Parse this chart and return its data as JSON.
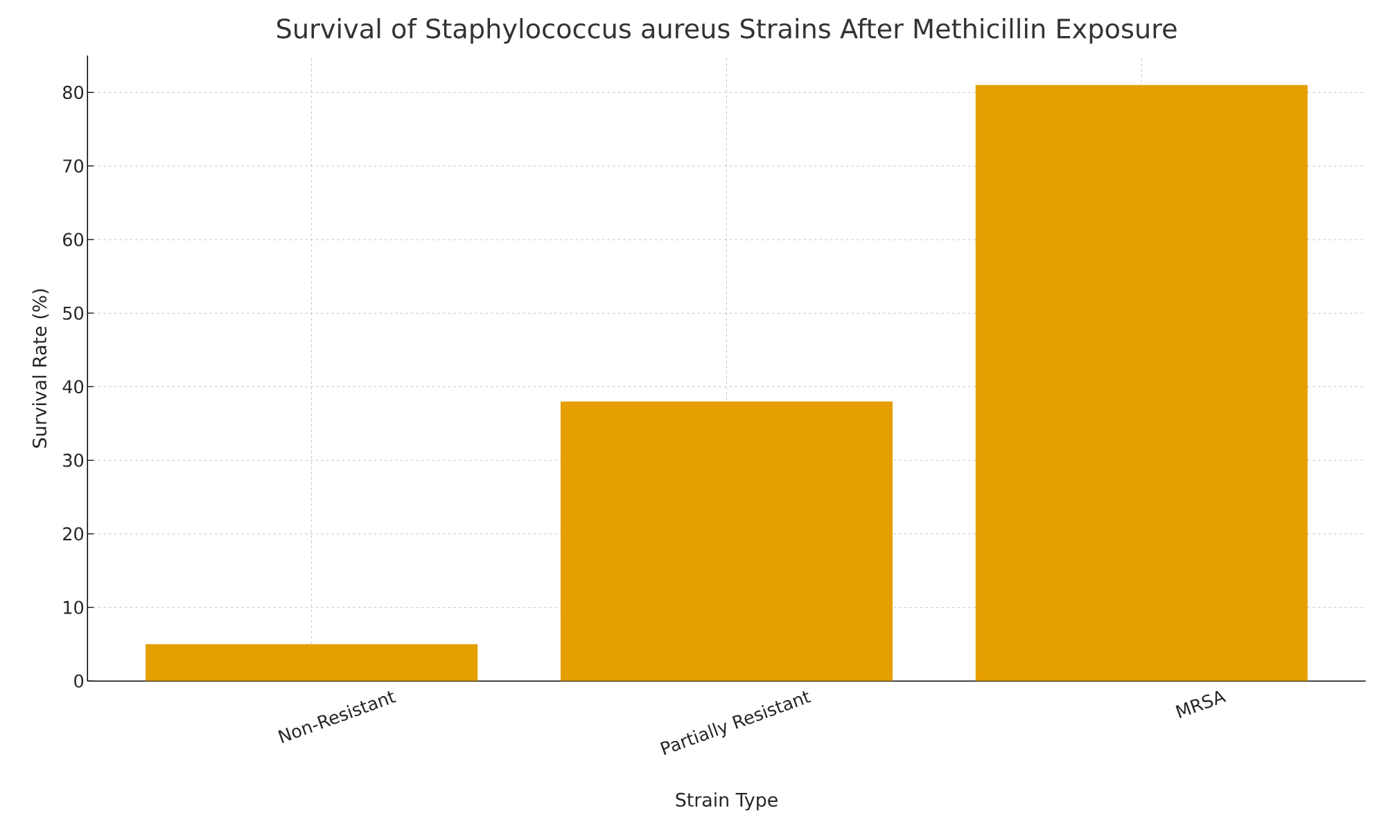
{
  "chart_data": {
    "type": "bar",
    "title": "Survival of Staphylococcus aureus Strains After Methicillin Exposure",
    "xlabel": "Strain Type",
    "ylabel": "Survival Rate (%)",
    "categories": [
      "Non-Resistant",
      "Partially Resistant",
      "MRSA"
    ],
    "values": [
      5,
      38,
      81
    ],
    "color": "#e69f00",
    "ylim": [
      0,
      85
    ],
    "yticks": [
      0,
      10,
      20,
      30,
      40,
      50,
      60,
      70,
      80
    ],
    "grid": true,
    "line_style": "dashed"
  }
}
